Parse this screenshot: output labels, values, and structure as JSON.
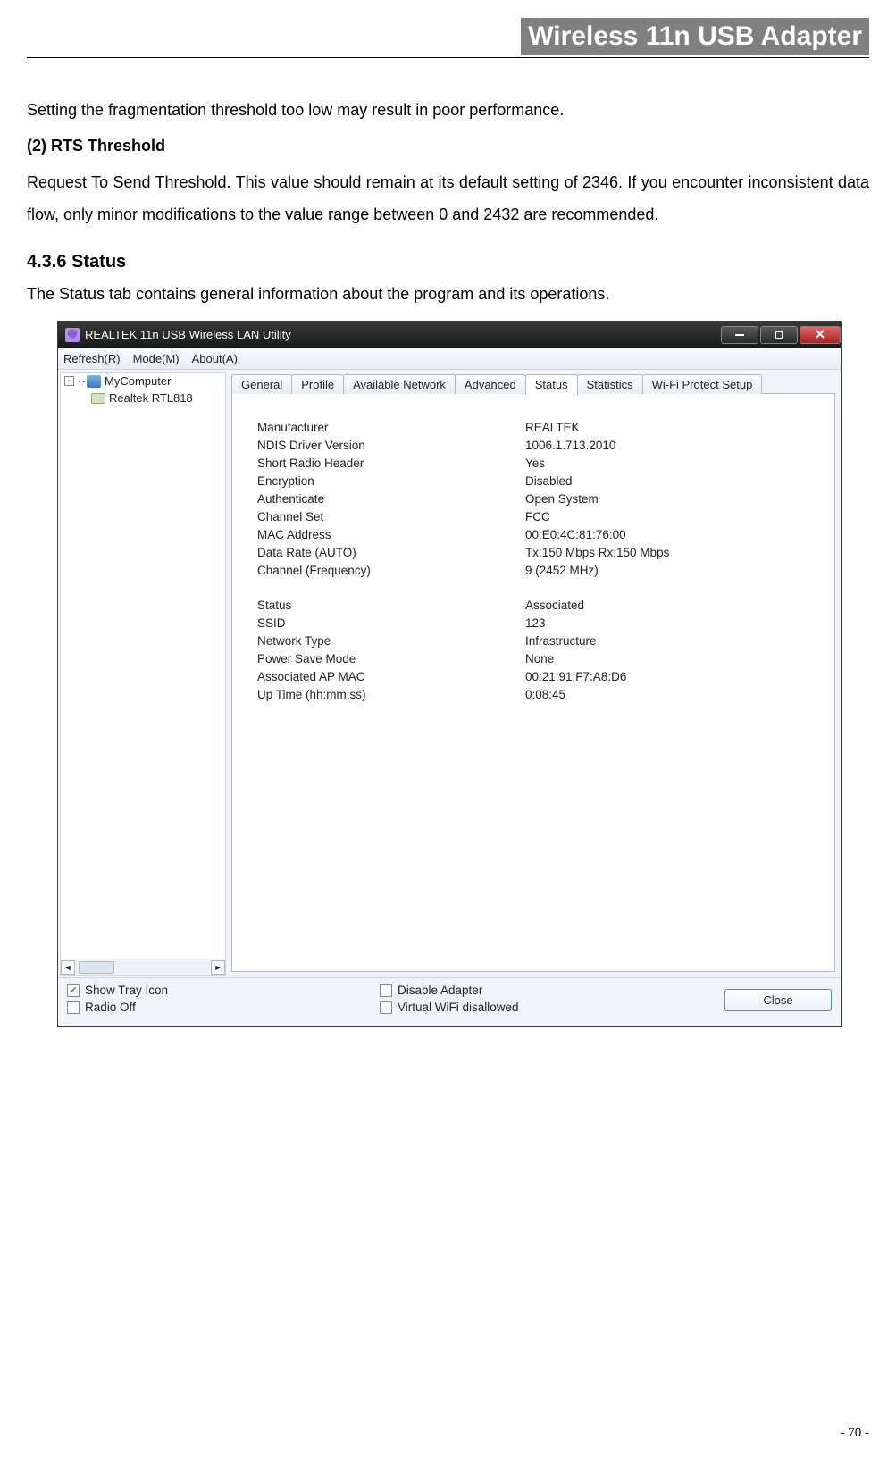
{
  "header": {
    "title": "Wireless 11n USB Adapter"
  },
  "body": {
    "p1": "Setting the fragmentation threshold too low may result in poor performance.",
    "h_rts": "(2) RTS Threshold",
    "p_rts": "Request To Send Threshold. This value should remain at its default setting of 2346. If you encounter inconsistent data flow, only minor modifications to the value range between 0 and 2432 are recommended.",
    "h_436": "4.3.6    Status",
    "p_436": "The Status tab contains general information about the program and its operations."
  },
  "window": {
    "title": "REALTEK 11n USB Wireless LAN Utility",
    "menu": {
      "refresh": "Refresh(R)",
      "mode": "Mode(M)",
      "about": "About(A)"
    },
    "tree": {
      "root": "MyComputer",
      "child": "Realtek RTL818"
    },
    "tabs": {
      "general": "General",
      "profile": "Profile",
      "available": "Available Network",
      "advanced": "Advanced",
      "status": "Status",
      "statistics": "Statistics",
      "wps": "Wi-Fi Protect Setup"
    },
    "status": {
      "labels": {
        "manufacturer": "Manufacturer",
        "ndis": "NDIS Driver Version",
        "shortradio": "Short Radio Header",
        "encryption": "Encryption",
        "authenticate": "Authenticate",
        "channelset": "Channel Set",
        "mac": "MAC Address",
        "datarate": "Data Rate (AUTO)",
        "channelfreq": "Channel (Frequency)",
        "status": "Status",
        "ssid": "SSID",
        "nettype": "Network Type",
        "powersave": "Power Save Mode",
        "apmac": "Associated AP MAC",
        "uptime": "Up Time (hh:mm:ss)"
      },
      "values": {
        "manufacturer": "REALTEK",
        "ndis": "1006.1.713.2010",
        "shortradio": "Yes",
        "encryption": "Disabled",
        "authenticate": "Open System",
        "channelset": "FCC",
        "mac": "00:E0:4C:81:76:00",
        "datarate": "Tx:150 Mbps Rx:150 Mbps",
        "channelfreq": "9 (2452 MHz)",
        "status": "Associated",
        "ssid": "123",
        "nettype": "Infrastructure",
        "powersave": "None",
        "apmac": "00:21:91:F7:A8:D6",
        "uptime": "0:08:45"
      }
    },
    "bottom": {
      "showtray": "Show Tray Icon",
      "radiooff": "Radio Off",
      "disableadapter": "Disable Adapter",
      "virtualwifi": "Virtual WiFi disallowed",
      "close": "Close"
    }
  },
  "footer": {
    "page": "- 70 -"
  }
}
